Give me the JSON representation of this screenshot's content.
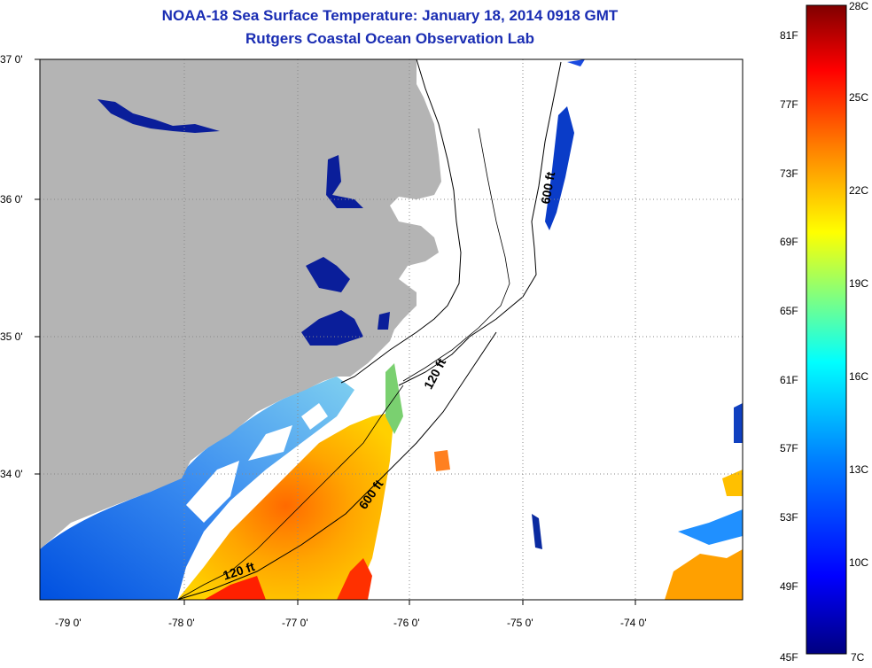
{
  "title": "NOAA-18 Sea Surface Temperature:  January 18, 2014 0918 GMT",
  "subtitle": "Rutgers Coastal Ocean Observation Lab",
  "lat_ticks": [
    "37 0'",
    "36 0'",
    "35 0'",
    "34 0'"
  ],
  "lon_ticks": [
    "-79 0'",
    "-78 0'",
    "-77 0'",
    "-76 0'",
    "-75 0'",
    "-74 0'"
  ],
  "contours": {
    "north_600": "600 ft",
    "mid_120": "120 ft",
    "south_600": "600 ft",
    "south_120": "120 ft"
  },
  "colorbar": {
    "celsius": [
      "28C",
      "25C",
      "22C",
      "19C",
      "16C",
      "13C",
      "10C",
      "7C"
    ],
    "fahrenheit": [
      "81F",
      "77F",
      "73F",
      "69F",
      "65F",
      "61F",
      "57F",
      "53F",
      "49F",
      "45F"
    ],
    "colors": [
      "#800000",
      "#ff0000",
      "#ff8000",
      "#ffff00",
      "#80ff80",
      "#00ffff",
      "#0080ff",
      "#0000ff",
      "#000080"
    ]
  },
  "colors": {
    "land": "#b4b4b4",
    "inland_water": "#0a1e9a",
    "title": "#1a2db3"
  }
}
